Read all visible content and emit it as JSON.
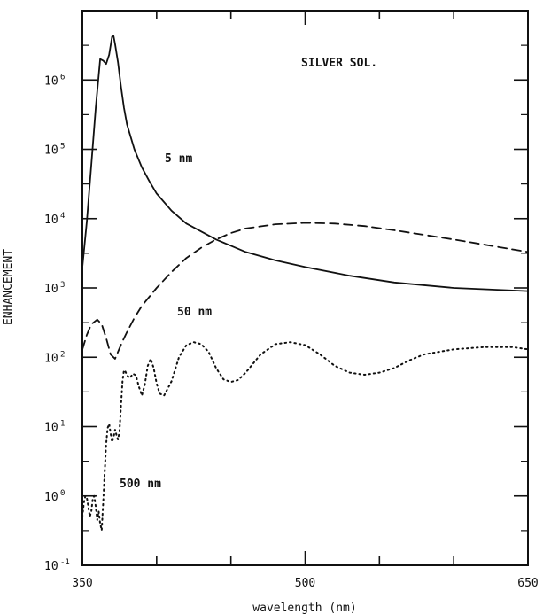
{
  "chart_data": {
    "type": "line",
    "title": "",
    "xlabel": "wavelength (nm)",
    "ylabel": "ENHANCEMENT",
    "xlim": [
      350,
      650
    ],
    "ylim_log10": [
      -1,
      7
    ],
    "y_scale": "log",
    "x_ticks": [
      350,
      500,
      650
    ],
    "y_ticks": [
      {
        "base": "10",
        "exp": "-1"
      },
      {
        "base": "10",
        "exp": "0"
      },
      {
        "base": "10",
        "exp": "1"
      },
      {
        "base": "10",
        "exp": "2"
      },
      {
        "base": "10",
        "exp": "3"
      },
      {
        "base": "10",
        "exp": "4"
      },
      {
        "base": "10",
        "exp": "5"
      },
      {
        "base": "10",
        "exp": "6"
      }
    ],
    "annotations": {
      "sol": "SILVER SOL.",
      "s5": "5 nm",
      "s50": "50 nm",
      "s500": "500 nm"
    },
    "series": [
      {
        "name": "5 nm",
        "style": "solid",
        "x": [
          350,
          353,
          356,
          359,
          362,
          364,
          366,
          368,
          370,
          371,
          372,
          374,
          376,
          378,
          380,
          385,
          390,
          395,
          400,
          410,
          420,
          440,
          460,
          480,
          500,
          530,
          560,
          600,
          650
        ],
        "y": [
          2000,
          9000,
          60000,
          400000,
          2000000,
          1900000,
          1700000,
          2300000,
          4200000,
          4300000,
          3300000,
          1800000,
          800000,
          400000,
          230000,
          100000,
          55000,
          35000,
          23000,
          13000,
          8500,
          5000,
          3300,
          2500,
          2000,
          1500,
          1200,
          1000,
          900
        ]
      },
      {
        "name": "50 nm",
        "style": "dashed",
        "x": [
          350,
          353,
          356,
          360,
          363,
          366,
          369,
          372,
          374,
          377,
          380,
          385,
          390,
          400,
          410,
          420,
          430,
          440,
          450,
          460,
          480,
          500,
          520,
          540,
          560,
          600,
          650
        ],
        "y": [
          130,
          210,
          300,
          350,
          300,
          190,
          110,
          95,
          120,
          170,
          230,
          370,
          550,
          1000,
          1700,
          2700,
          3800,
          5000,
          6200,
          7200,
          8300,
          8700,
          8500,
          7800,
          6800,
          5000,
          3300
        ]
      },
      {
        "name": "500 nm",
        "style": "dotted",
        "x": [
          350,
          351,
          352,
          353,
          354,
          355,
          356,
          357,
          358,
          359,
          360,
          361,
          362,
          363,
          364,
          365,
          366,
          367,
          368,
          369,
          370,
          371,
          372,
          373,
          374,
          375,
          376,
          377,
          378,
          379,
          380,
          382,
          384,
          386,
          388,
          390,
          392,
          394,
          396,
          398,
          400,
          402,
          405,
          410,
          415,
          420,
          425,
          430,
          435,
          440,
          445,
          450,
          455,
          460,
          470,
          480,
          490,
          500,
          510,
          520,
          530,
          540,
          550,
          560,
          570,
          580,
          600,
          620,
          640,
          650
        ],
        "y": [
          0.5,
          0.8,
          1.0,
          0.95,
          0.7,
          0.5,
          0.6,
          0.9,
          1.0,
          0.7,
          0.45,
          0.6,
          0.4,
          0.32,
          0.8,
          2.2,
          5.5,
          9.5,
          11,
          8,
          6,
          7,
          9,
          7.5,
          6.5,
          8.5,
          20,
          45,
          65,
          62,
          55,
          50,
          58,
          55,
          38,
          28,
          40,
          75,
          95,
          70,
          42,
          30,
          28,
          45,
          100,
          150,
          165,
          155,
          120,
          70,
          48,
          44,
          47,
          60,
          110,
          155,
          165,
          150,
          110,
          75,
          60,
          56,
          60,
          70,
          90,
          110,
          130,
          140,
          140,
          130
        ]
      }
    ]
  }
}
